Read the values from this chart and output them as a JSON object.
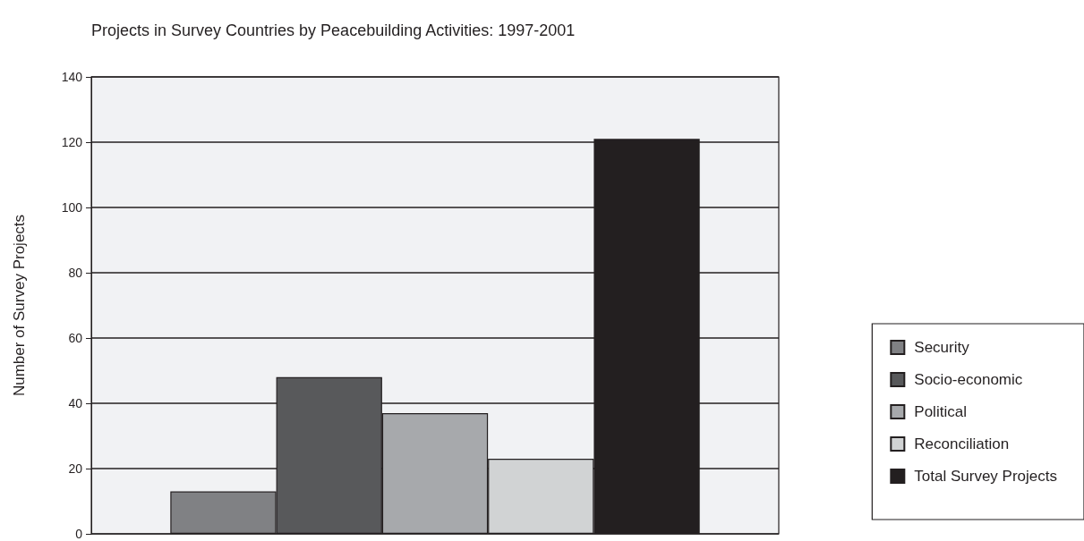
{
  "chart_data": {
    "type": "bar",
    "title": "Projects in Survey Countries by Peacebuilding Activities: 1997-2001",
    "ylabel": "Number of Survey Projects",
    "categories": [
      null
    ],
    "series": [
      {
        "name": "Security",
        "color": "#808184",
        "values": [
          13
        ]
      },
      {
        "name": "Socio-economic",
        "color": "#58595b",
        "values": [
          48
        ]
      },
      {
        "name": "Political",
        "color": "#a7a9ac",
        "values": [
          37
        ]
      },
      {
        "name": "Reconciliation",
        "color": "#d1d3d4",
        "values": [
          23
        ]
      },
      {
        "name": "Total Survey Projects",
        "color": "#231f20",
        "values": [
          121
        ]
      }
    ],
    "ylim": [
      0,
      140
    ],
    "yticks": [
      0,
      20,
      40,
      60,
      80,
      100,
      120,
      140
    ],
    "grid": "y",
    "legend": "right"
  }
}
